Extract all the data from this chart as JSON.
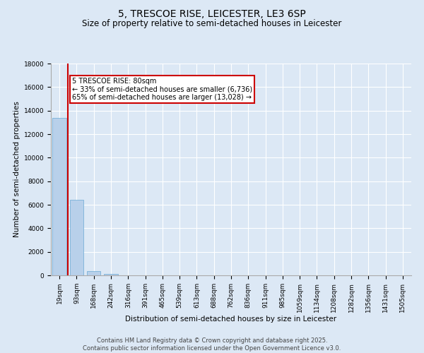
{
  "title": "5, TRESCOE RISE, LEICESTER, LE3 6SP",
  "subtitle": "Size of property relative to semi-detached houses in Leicester",
  "xlabel": "Distribution of semi-detached houses by size in Leicester",
  "ylabel": "Number of semi-detached properties",
  "bar_categories": [
    "19sqm",
    "93sqm",
    "168sqm",
    "242sqm",
    "316sqm",
    "391sqm",
    "465sqm",
    "539sqm",
    "613sqm",
    "688sqm",
    "762sqm",
    "836sqm",
    "911sqm",
    "985sqm",
    "1059sqm",
    "1134sqm",
    "1208sqm",
    "1282sqm",
    "1356sqm",
    "1431sqm",
    "1505sqm"
  ],
  "bar_values": [
    13400,
    6400,
    350,
    100,
    0,
    0,
    0,
    0,
    0,
    0,
    0,
    0,
    0,
    0,
    0,
    0,
    0,
    0,
    0,
    0,
    0
  ],
  "bar_color": "#b8d0ea",
  "bar_edge_color": "#6aaad4",
  "red_line_color": "#cc0000",
  "annotation_text": "5 TRESCOE RISE: 80sqm\n← 33% of semi-detached houses are smaller (6,736)\n65% of semi-detached houses are larger (13,028) →",
  "annotation_box_color": "#cc0000",
  "ylim": [
    0,
    18000
  ],
  "background_color": "#dce8f5",
  "plot_bg_color": "#dce8f5",
  "grid_color": "#ffffff",
  "footer_text": "Contains HM Land Registry data © Crown copyright and database right 2025.\nContains public sector information licensed under the Open Government Licence v3.0.",
  "title_fontsize": 10,
  "subtitle_fontsize": 8.5,
  "tick_fontsize": 6.5,
  "ylabel_fontsize": 7.5,
  "xlabel_fontsize": 7.5,
  "annotation_fontsize": 7,
  "footer_fontsize": 6
}
